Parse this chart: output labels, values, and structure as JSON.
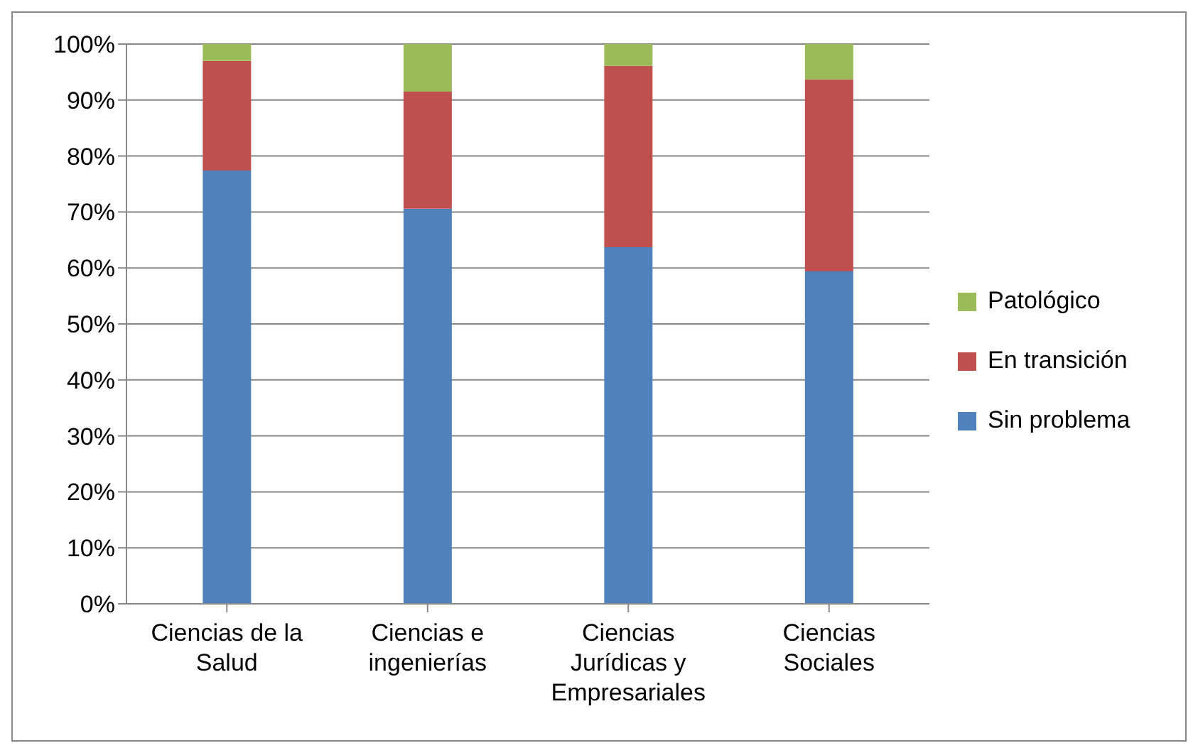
{
  "chart_data": {
    "type": "bar",
    "stacked": true,
    "categories": [
      "Ciencias de la Salud",
      "Ciencias e ingenierías",
      "Ciencias Jurídicas y Empresariales",
      "Ciencias Sociales"
    ],
    "series": [
      {
        "name": "Sin problema",
        "color": "#4f81bd",
        "values": [
          77.4,
          70.6,
          63.7,
          59.4
        ]
      },
      {
        "name": "En transición",
        "color": "#c0504d",
        "values": [
          19.6,
          20.9,
          32.4,
          34.3
        ]
      },
      {
        "name": "Patológico",
        "color": "#9bbb59",
        "values": [
          3.0,
          8.5,
          3.9,
          6.3
        ]
      }
    ],
    "ylim": [
      0,
      100
    ],
    "yticks": [
      {
        "value": 0,
        "label": "0%"
      },
      {
        "value": 10,
        "label": "10%"
      },
      {
        "value": 20,
        "label": "20%"
      },
      {
        "value": 30,
        "label": "30%"
      },
      {
        "value": 40,
        "label": "40%"
      },
      {
        "value": 50,
        "label": "50%"
      },
      {
        "value": 60,
        "label": "60%"
      },
      {
        "value": 70,
        "label": "70%"
      },
      {
        "value": 80,
        "label": "80%"
      },
      {
        "value": 90,
        "label": "90%"
      },
      {
        "value": 100,
        "label": "100%"
      }
    ],
    "grid": "y",
    "legend": "right"
  }
}
